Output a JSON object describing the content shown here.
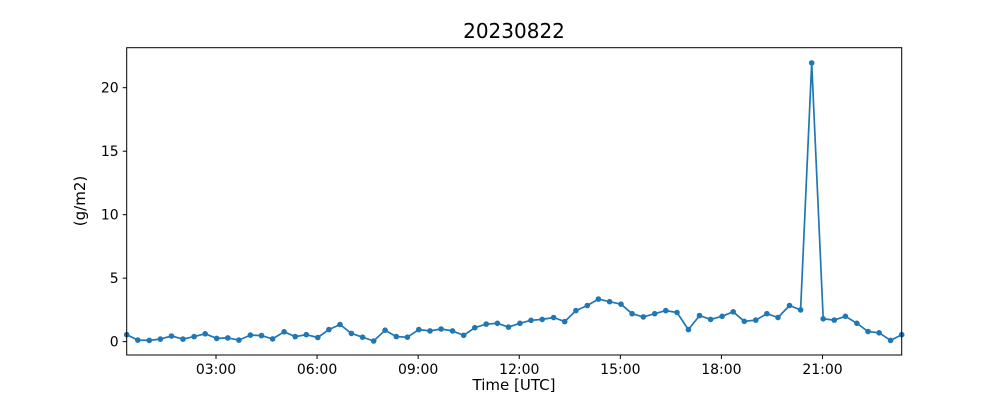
{
  "chart_data": {
    "type": "line",
    "title": "20230822",
    "xlabel": "Time [UTC]",
    "ylabel": "(g/m2)",
    "line_color": "#1f77b4",
    "marker": "point",
    "grid": false,
    "legend": "none",
    "xlim": [
      0.35,
      23.35
    ],
    "ylim": [
      -1.05,
      23.15
    ],
    "x_ticks": [
      {
        "hour": 3,
        "label": "03:00"
      },
      {
        "hour": 6,
        "label": "06:00"
      },
      {
        "hour": 9,
        "label": "09:00"
      },
      {
        "hour": 12,
        "label": "12:00"
      },
      {
        "hour": 15,
        "label": "15:00"
      },
      {
        "hour": 18,
        "label": "18:00"
      },
      {
        "hour": 21,
        "label": "21:00"
      }
    ],
    "y_ticks": [
      0,
      5,
      10,
      15,
      20
    ],
    "x_hours": [
      0.35,
      0.68,
      1.02,
      1.35,
      1.68,
      2.02,
      2.35,
      2.68,
      3.02,
      3.35,
      3.68,
      4.02,
      4.35,
      4.68,
      5.02,
      5.35,
      5.68,
      6.02,
      6.35,
      6.68,
      7.02,
      7.35,
      7.68,
      8.02,
      8.35,
      8.68,
      9.02,
      9.35,
      9.68,
      10.02,
      10.35,
      10.68,
      11.02,
      11.35,
      11.68,
      12.02,
      12.35,
      12.68,
      13.02,
      13.35,
      13.68,
      14.02,
      14.35,
      14.68,
      15.02,
      15.35,
      15.68,
      16.02,
      16.35,
      16.68,
      17.02,
      17.35,
      17.68,
      18.02,
      18.35,
      18.68,
      19.02,
      19.35,
      19.68,
      20.02,
      20.35,
      20.68,
      21.02,
      21.35,
      21.68,
      22.02,
      22.35,
      22.68,
      23.02,
      23.35
    ],
    "values": [
      0.55,
      0.12,
      0.1,
      0.2,
      0.45,
      0.2,
      0.4,
      0.62,
      0.26,
      0.3,
      0.12,
      0.52,
      0.48,
      0.22,
      0.78,
      0.4,
      0.55,
      0.33,
      0.95,
      1.35,
      0.65,
      0.35,
      0.05,
      0.9,
      0.4,
      0.35,
      0.95,
      0.85,
      1.0,
      0.85,
      0.5,
      1.1,
      1.38,
      1.45,
      1.15,
      1.45,
      1.68,
      1.75,
      1.9,
      1.58,
      2.45,
      2.85,
      3.35,
      3.15,
      2.95,
      2.2,
      1.95,
      2.2,
      2.45,
      2.3,
      0.95,
      2.05,
      1.75,
      2.0,
      2.35,
      1.6,
      1.7,
      2.2,
      1.9,
      2.85,
      2.5,
      21.95,
      1.8,
      1.7,
      2.0,
      1.45,
      0.8,
      0.7,
      0.1,
      0.55
    ]
  }
}
